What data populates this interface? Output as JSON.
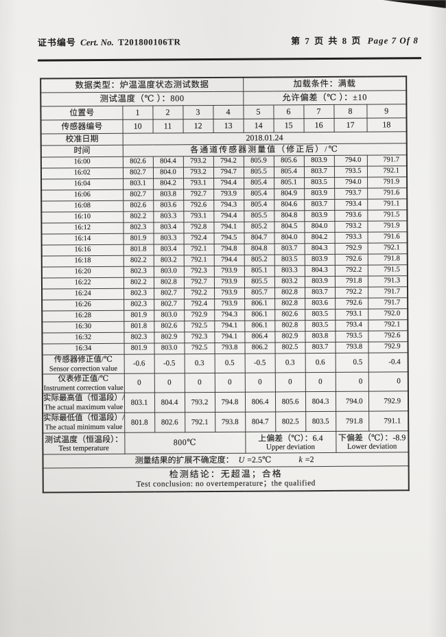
{
  "page_header": {
    "cert_label_zh": "证书编号",
    "cert_label_en": "Cert. No.",
    "cert_number": "T201800106TR",
    "page_info_zh": "第 7 页 共 8 页",
    "page_info_en": "Page 7 Of 8"
  },
  "table": {
    "data_type": "数据类型：炉温温度状态测试数据",
    "load_condition": "加载条件：满载",
    "test_temperature_line": "测试温度（℃ ）：800",
    "allowed_deviation": "允许偏差（℃ ）：±10",
    "position_label": "位置号",
    "positions": [
      "1",
      "2",
      "3",
      "4",
      "5",
      "6",
      "7",
      "8",
      "9"
    ],
    "sensor_label": "传感器编号",
    "sensor_numbers": [
      "10",
      "11",
      "12",
      "13",
      "14",
      "15",
      "16",
      "17",
      "18"
    ],
    "calibration_date_label": "校准日期",
    "calibration_date": "2018.01.24",
    "time_label": "时间",
    "channels_header": "各通道传感器测量值（修正后）/℃",
    "readings": [
      {
        "time": "16:00",
        "values": [
          "802.6",
          "804.4",
          "793.2",
          "794.2",
          "805.9",
          "805.6",
          "803.9",
          "794.0",
          "791.7"
        ]
      },
      {
        "time": "16:02",
        "values": [
          "802.7",
          "804.0",
          "793.2",
          "794.7",
          "805.5",
          "805.4",
          "803.7",
          "793.5",
          "792.1"
        ]
      },
      {
        "time": "16:04",
        "values": [
          "803.1",
          "804.2",
          "793.1",
          "794.4",
          "805.4",
          "805.1",
          "803.5",
          "794.0",
          "791.9"
        ]
      },
      {
        "time": "16:06",
        "values": [
          "802.7",
          "803.8",
          "792.7",
          "793.9",
          "805.4",
          "804.9",
          "803.9",
          "793.7",
          "791.6"
        ]
      },
      {
        "time": "16:08",
        "values": [
          "802.6",
          "803.6",
          "792.6",
          "794.3",
          "805.4",
          "804.6",
          "803.7",
          "793.4",
          "791.1"
        ]
      },
      {
        "time": "16:10",
        "values": [
          "802.2",
          "803.3",
          "793.1",
          "794.4",
          "805.5",
          "804.8",
          "803.9",
          "793.6",
          "791.5"
        ]
      },
      {
        "time": "16:12",
        "values": [
          "802.3",
          "803.4",
          "792.8",
          "794.1",
          "805.2",
          "804.5",
          "804.0",
          "793.2",
          "791.9"
        ]
      },
      {
        "time": "16:14",
        "values": [
          "801.9",
          "803.3",
          "792.4",
          "794.5",
          "804.7",
          "804.0",
          "804.2",
          "793.3",
          "791.6"
        ]
      },
      {
        "time": "16:16",
        "values": [
          "801.8",
          "803.4",
          "792.1",
          "794.8",
          "804.8",
          "803.7",
          "804.3",
          "792.9",
          "792.1"
        ]
      },
      {
        "time": "16:18",
        "values": [
          "802.2",
          "803.2",
          "792.1",
          "794.4",
          "805.2",
          "803.5",
          "803.9",
          "792.6",
          "791.8"
        ]
      },
      {
        "time": "16:20",
        "values": [
          "802.3",
          "803.0",
          "792.3",
          "793.9",
          "805.1",
          "803.3",
          "804.3",
          "792.2",
          "791.5"
        ]
      },
      {
        "time": "16:22",
        "values": [
          "802.2",
          "802.8",
          "792.7",
          "793.9",
          "805.5",
          "803.2",
          "803.9",
          "791.8",
          "791.3"
        ]
      },
      {
        "time": "16:24",
        "values": [
          "802.3",
          "802.7",
          "792.2",
          "793.9",
          "805.7",
          "802.8",
          "803.7",
          "792.2",
          "791.7"
        ]
      },
      {
        "time": "16:26",
        "values": [
          "802.3",
          "802.7",
          "792.4",
          "793.9",
          "806.1",
          "802.8",
          "803.6",
          "792.6",
          "791.7"
        ]
      },
      {
        "time": "16:28",
        "values": [
          "801.9",
          "803.0",
          "792.9",
          "794.3",
          "806.1",
          "802.6",
          "803.5",
          "793.1",
          "792.0"
        ]
      },
      {
        "time": "16:30",
        "values": [
          "801.8",
          "802.6",
          "792.5",
          "794.1",
          "806.1",
          "802.8",
          "803.5",
          "793.4",
          "792.1"
        ]
      },
      {
        "time": "16:32",
        "values": [
          "802.3",
          "802.9",
          "792.3",
          "794.1",
          "806.4",
          "802.9",
          "803.8",
          "793.5",
          "792.6"
        ]
      },
      {
        "time": "16:34",
        "values": [
          "801.9",
          "803.0",
          "792.5",
          "793.8",
          "806.2",
          "802.5",
          "803.7",
          "793.8",
          "792.9"
        ]
      }
    ],
    "sensor_correction": {
      "label_zh": "传感器修正值/℃",
      "label_en": "Sensor correction value",
      "values": [
        "-0.6",
        "-0.5",
        "0.3",
        "0.5",
        "-0.5",
        "0.3",
        "0.6",
        "0.5",
        "-0.4"
      ]
    },
    "instrument_correction": {
      "label_zh": "仪表修正值/℃",
      "label_en": "Instrument correction value",
      "values": [
        "0",
        "0",
        "0",
        "0",
        "0",
        "0",
        "0",
        "0",
        "0"
      ]
    },
    "actual_maximum": {
      "label_zh": "实际最高值（恒温段）/℃",
      "label_en": "The actual maximum value",
      "values": [
        "803.1",
        "804.4",
        "793.2",
        "794.8",
        "806.4",
        "805.6",
        "804.3",
        "794.0",
        "792.9"
      ]
    },
    "actual_minimum": {
      "label_zh": "实际最低值（恒温段）/℃",
      "label_en": "The actual minimum value",
      "values": [
        "801.8",
        "802.6",
        "792.1",
        "793.8",
        "804.7",
        "802.5",
        "803.5",
        "791.8",
        "791.1"
      ]
    },
    "summary": {
      "test_temp_label_zh": "测试温度（恒温段）：",
      "test_temp_label_en": "Test temperature",
      "test_temp_value": "800℃",
      "upper_deviation_zh": "上偏差（℃）：6.4",
      "upper_deviation_en": "Upper deviation",
      "lower_deviation_zh": "下偏差（℃）：-8.9",
      "lower_deviation_en": "Lower deviation"
    },
    "uncertainty": {
      "label": "测量结果的扩展不确定度：",
      "u_sym": "U",
      "u_val": "=2.5℃",
      "k_sym": "k",
      "k_val": "=2"
    },
    "conclusion_zh": "检测结论：无超温；合格",
    "conclusion_en": "Test conclusion: no overtemperature；the qualified"
  }
}
